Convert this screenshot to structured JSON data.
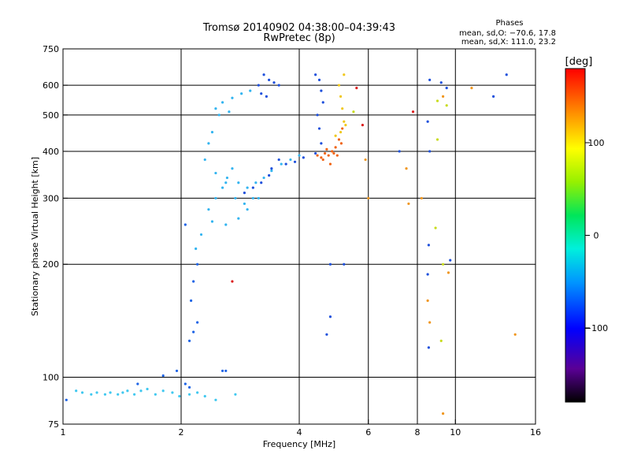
{
  "chart_data": {
    "type": "scatter",
    "title": "Tromsø 20140902 04:38:00–04:39:43",
    "subtitle": "RwPretec (8p)",
    "stats_title": "Phases",
    "stats_o": "mean, sd,O: −70.6, 17.8",
    "stats_x": "mean, sd,X: 111.0, 23.2",
    "xlabel": "Frequency [MHz]",
    "ylabel": "Stationary phase Virtual Height [km]",
    "xscale": "log",
    "yscale": "log",
    "xlim": [
      1,
      16
    ],
    "ylim": [
      75,
      750
    ],
    "xticks": [
      1,
      2,
      4,
      6,
      8,
      10,
      16
    ],
    "xtick_labels": [
      "1",
      "2",
      "4",
      "6",
      "8",
      "10",
      "16"
    ],
    "xgrid": [
      2,
      4,
      6,
      8,
      10
    ],
    "yticks": [
      75,
      100,
      200,
      300,
      400,
      500,
      600,
      750
    ],
    "ytick_labels": [
      "75",
      "100",
      "200",
      "300",
      "400",
      "500",
      "600",
      "750"
    ],
    "ygrid": [
      100,
      200,
      300,
      400,
      500,
      600
    ],
    "colorbar": {
      "label": "[deg]",
      "range": [
        -180,
        180
      ],
      "ticks": [
        100,
        0,
        -100
      ],
      "tick_labels": [
        "100",
        "0",
        "−100"
      ]
    },
    "series": [
      {
        "color": "#40c8f0",
        "points": [
          [
            1.08,
            92
          ],
          [
            1.12,
            91
          ],
          [
            1.18,
            90
          ],
          [
            1.22,
            91
          ],
          [
            1.28,
            90
          ],
          [
            1.32,
            91
          ],
          [
            1.38,
            90
          ],
          [
            1.42,
            91
          ],
          [
            1.46,
            92
          ],
          [
            1.52,
            90
          ],
          [
            1.58,
            92
          ],
          [
            1.64,
            93
          ],
          [
            1.72,
            90
          ],
          [
            1.8,
            92
          ],
          [
            1.9,
            91
          ],
          [
            1.98,
            89
          ],
          [
            2.1,
            90
          ],
          [
            2.2,
            91
          ],
          [
            2.3,
            89
          ],
          [
            2.45,
            87
          ],
          [
            2.75,
            90
          ]
        ]
      },
      {
        "color": "#1e64e6",
        "points": [
          [
            1.02,
            87
          ],
          [
            1.55,
            96
          ],
          [
            1.8,
            101
          ],
          [
            1.95,
            104
          ],
          [
            2.05,
            96
          ],
          [
            2.1,
            94
          ],
          [
            2.55,
            104
          ],
          [
            2.6,
            104
          ],
          [
            2.15,
            132
          ],
          [
            2.2,
            140
          ],
          [
            2.1,
            125
          ],
          [
            2.12,
            160
          ],
          [
            2.15,
            180
          ],
          [
            2.2,
            200
          ],
          [
            2.05,
            255
          ]
        ]
      },
      {
        "color": "#32b4f0",
        "points": [
          [
            2.18,
            220
          ],
          [
            2.25,
            240
          ],
          [
            2.35,
            280
          ],
          [
            2.45,
            300
          ],
          [
            2.55,
            320
          ],
          [
            2.62,
            340
          ],
          [
            2.7,
            360
          ],
          [
            2.8,
            330
          ],
          [
            2.95,
            320
          ],
          [
            3.1,
            330
          ],
          [
            3.25,
            340
          ],
          [
            3.4,
            355
          ],
          [
            3.6,
            370
          ],
          [
            3.8,
            380
          ],
          [
            4.0,
            390
          ],
          [
            2.3,
            380
          ],
          [
            2.45,
            350
          ],
          [
            2.6,
            330
          ],
          [
            2.75,
            300
          ],
          [
            2.9,
            290
          ],
          [
            3.05,
            300
          ],
          [
            2.4,
            260
          ],
          [
            2.6,
            255
          ],
          [
            2.8,
            265
          ],
          [
            2.95,
            280
          ],
          [
            3.15,
            300
          ],
          [
            2.45,
            520
          ],
          [
            2.55,
            540
          ],
          [
            2.7,
            555
          ],
          [
            2.85,
            570
          ],
          [
            3.0,
            580
          ],
          [
            2.5,
            500
          ],
          [
            2.65,
            510
          ],
          [
            2.35,
            420
          ],
          [
            2.4,
            450
          ]
        ]
      },
      {
        "color": "#1e50dc",
        "points": [
          [
            3.15,
            600
          ],
          [
            3.25,
            640
          ],
          [
            3.35,
            620
          ],
          [
            3.45,
            610
          ],
          [
            3.55,
            600
          ],
          [
            3.2,
            570
          ],
          [
            3.3,
            560
          ],
          [
            4.4,
            640
          ],
          [
            4.5,
            620
          ],
          [
            4.55,
            580
          ],
          [
            4.6,
            540
          ],
          [
            4.45,
            500
          ],
          [
            4.5,
            460
          ],
          [
            4.55,
            420
          ],
          [
            4.4,
            395
          ],
          [
            3.4,
            360
          ],
          [
            3.55,
            380
          ],
          [
            3.7,
            370
          ],
          [
            3.9,
            375
          ],
          [
            4.1,
            385
          ],
          [
            2.9,
            310
          ],
          [
            3.05,
            320
          ],
          [
            3.2,
            330
          ],
          [
            3.35,
            345
          ]
        ]
      },
      {
        "color": "#f06414",
        "points": [
          [
            4.45,
            390
          ],
          [
            4.55,
            385
          ],
          [
            4.65,
            395
          ],
          [
            4.75,
            390
          ],
          [
            4.85,
            400
          ],
          [
            4.95,
            410
          ],
          [
            5.05,
            430
          ],
          [
            5.15,
            460
          ],
          [
            4.6,
            380
          ],
          [
            4.8,
            370
          ],
          [
            5.0,
            390
          ],
          [
            5.12,
            420
          ],
          [
            4.7,
            405
          ],
          [
            4.9,
            395
          ]
        ]
      },
      {
        "color": "#f0c81e",
        "points": [
          [
            5.05,
            600
          ],
          [
            5.1,
            560
          ],
          [
            5.15,
            520
          ],
          [
            5.2,
            480
          ],
          [
            5.2,
            640
          ],
          [
            4.95,
            440
          ],
          [
            5.1,
            450
          ],
          [
            5.25,
            470
          ]
        ]
      },
      {
        "color": "#1e50dc",
        "points": [
          [
            8.6,
            620
          ],
          [
            8.5,
            480
          ],
          [
            8.6,
            400
          ],
          [
            8.55,
            225
          ],
          [
            8.5,
            188
          ],
          [
            8.55,
            120
          ],
          [
            9.2,
            610
          ],
          [
            9.5,
            590
          ],
          [
            9.7,
            205
          ],
          [
            13.5,
            640
          ],
          [
            12.5,
            560
          ],
          [
            7.2,
            400
          ],
          [
            5.2,
            200
          ],
          [
            4.8,
            200
          ],
          [
            4.7,
            130
          ],
          [
            4.8,
            145
          ]
        ]
      },
      {
        "color": "#f0961e",
        "points": [
          [
            5.9,
            380
          ],
          [
            6.0,
            300
          ],
          [
            7.5,
            360
          ],
          [
            7.6,
            290
          ],
          [
            8.2,
            300
          ],
          [
            8.5,
            160
          ],
          [
            8.6,
            140
          ],
          [
            9.3,
            560
          ],
          [
            9.6,
            190
          ],
          [
            11.0,
            590
          ],
          [
            14.2,
            130
          ],
          [
            9.3,
            80
          ]
        ]
      },
      {
        "color": "#c8dc1e",
        "points": [
          [
            5.5,
            510
          ],
          [
            9.0,
            545
          ],
          [
            9.5,
            530
          ],
          [
            9.0,
            430
          ],
          [
            8.9,
            250
          ],
          [
            9.3,
            200
          ],
          [
            9.2,
            125
          ]
        ]
      },
      {
        "color": "#dc1e1e",
        "points": [
          [
            5.6,
            590
          ],
          [
            5.8,
            470
          ],
          [
            7.8,
            510
          ],
          [
            2.7,
            180
          ]
        ]
      }
    ]
  }
}
